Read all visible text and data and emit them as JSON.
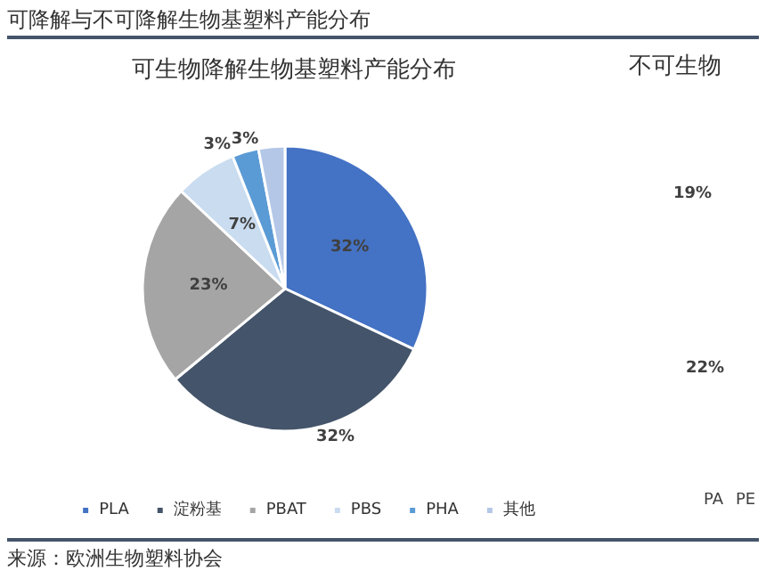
{
  "chart_data": [
    {
      "type": "pie",
      "title": "可降解与不可降解生物基塑料产能分布",
      "subtitle": "可生物降解生物基塑料产能分布",
      "categories": [
        "PLA",
        "淀粉基",
        "PBAT",
        "PBS",
        "PHA",
        "其他"
      ],
      "values": [
        32,
        32,
        23,
        7,
        3,
        3
      ],
      "colors": [
        "#4472c4",
        "#44546a",
        "#a5a5a5",
        "#c9dcf0",
        "#5b9bd5",
        "#b4c7e7"
      ],
      "value_labels": [
        "32%",
        "32%",
        "23%",
        "7%",
        "3%",
        "3%"
      ],
      "legend": "bottom",
      "annotations": [
        "来源：欧洲生物塑料协会"
      ]
    },
    {
      "type": "other",
      "title": "不可生物",
      "annotations": [
        "19%",
        "22%",
        "PA",
        "PE"
      ]
    }
  ]
}
